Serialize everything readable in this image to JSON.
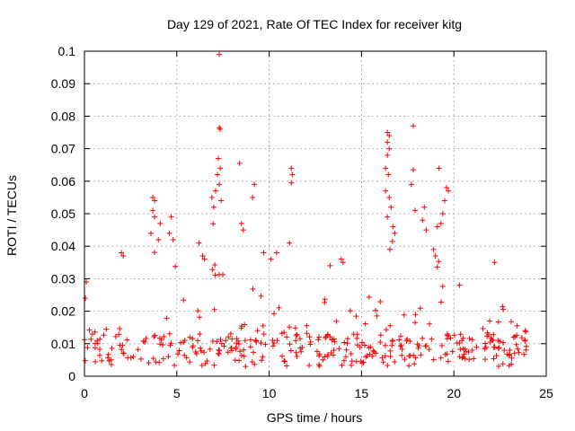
{
  "chart_data": {
    "type": "scatter",
    "title": "Day 129 of 2021, Rate Of TEC Index for receiver kitg",
    "xlabel": "GPS time / hours",
    "ylabel": "ROTI / TECUs",
    "xlim": [
      0,
      25
    ],
    "ylim": [
      0,
      0.1
    ],
    "xticks": [
      "0",
      "5",
      "10",
      "15",
      "20",
      "25"
    ],
    "yticks": [
      "0",
      "0.01",
      "0.02",
      "0.03",
      "0.04",
      "0.05",
      "0.06",
      "0.07",
      "0.08",
      "0.09",
      "0.1"
    ],
    "grid": true,
    "marker": "+",
    "color": "#ff0000",
    "envelope": [
      [
        0.0,
        0.014
      ],
      [
        0.5,
        0.016
      ],
      [
        1.0,
        0.02
      ],
      [
        1.5,
        0.022
      ],
      [
        2.0,
        0.026
      ],
      [
        2.5,
        0.022
      ],
      [
        3.0,
        0.024
      ],
      [
        3.5,
        0.028
      ],
      [
        3.8,
        0.044
      ],
      [
        4.2,
        0.03
      ],
      [
        4.8,
        0.038
      ],
      [
        5.2,
        0.028
      ],
      [
        5.8,
        0.024
      ],
      [
        6.3,
        0.03
      ],
      [
        6.7,
        0.046
      ],
      [
        7.0,
        0.05
      ],
      [
        7.3,
        0.064
      ],
      [
        7.6,
        0.048
      ],
      [
        8.0,
        0.026
      ],
      [
        8.5,
        0.026
      ],
      [
        9.0,
        0.03
      ],
      [
        9.5,
        0.026
      ],
      [
        10.0,
        0.032
      ],
      [
        10.5,
        0.028
      ],
      [
        11.0,
        0.026
      ],
      [
        11.5,
        0.024
      ],
      [
        12.0,
        0.024
      ],
      [
        12.5,
        0.022
      ],
      [
        13.0,
        0.026
      ],
      [
        13.5,
        0.026
      ],
      [
        14.0,
        0.028
      ],
      [
        14.5,
        0.026
      ],
      [
        15.0,
        0.026
      ],
      [
        15.5,
        0.028
      ],
      [
        16.0,
        0.03
      ],
      [
        16.3,
        0.05
      ],
      [
        16.6,
        0.062
      ],
      [
        16.9,
        0.04
      ],
      [
        17.3,
        0.03
      ],
      [
        17.8,
        0.034
      ],
      [
        18.2,
        0.036
      ],
      [
        18.6,
        0.04
      ],
      [
        19.0,
        0.044
      ],
      [
        19.4,
        0.034
      ],
      [
        19.7,
        0.022
      ],
      [
        20.0,
        0.014
      ],
      [
        20.5,
        0.012
      ],
      [
        21.0,
        0.016
      ],
      [
        21.5,
        0.02
      ],
      [
        22.0,
        0.024
      ],
      [
        22.5,
        0.022
      ],
      [
        23.0,
        0.024
      ],
      [
        23.5,
        0.022
      ],
      [
        24.0,
        0.018
      ]
    ],
    "outliers": [
      {
        "x": 7.3,
        "y": 0.099
      },
      {
        "x": 7.3,
        "y": 0.0765
      },
      {
        "x": 7.35,
        "y": 0.076
      },
      {
        "x": 7.25,
        "y": 0.067
      },
      {
        "x": 7.35,
        "y": 0.064
      },
      {
        "x": 7.2,
        "y": 0.062
      },
      {
        "x": 7.3,
        "y": 0.059
      },
      {
        "x": 7.1,
        "y": 0.057
      },
      {
        "x": 6.9,
        "y": 0.055
      },
      {
        "x": 7.4,
        "y": 0.054
      },
      {
        "x": 7.0,
        "y": 0.052
      },
      {
        "x": 8.4,
        "y": 0.0655
      },
      {
        "x": 9.2,
        "y": 0.059
      },
      {
        "x": 9.1,
        "y": 0.055
      },
      {
        "x": 8.5,
        "y": 0.047
      },
      {
        "x": 8.6,
        "y": 0.045
      },
      {
        "x": 9.7,
        "y": 0.038
      },
      {
        "x": 10.4,
        "y": 0.038
      },
      {
        "x": 11.2,
        "y": 0.064
      },
      {
        "x": 11.25,
        "y": 0.062
      },
      {
        "x": 11.2,
        "y": 0.0595
      },
      {
        "x": 11.1,
        "y": 0.041
      },
      {
        "x": 10.1,
        "y": 0.036
      },
      {
        "x": 3.7,
        "y": 0.055
      },
      {
        "x": 3.8,
        "y": 0.054
      },
      {
        "x": 3.7,
        "y": 0.051
      },
      {
        "x": 3.8,
        "y": 0.049
      },
      {
        "x": 4.1,
        "y": 0.047
      },
      {
        "x": 3.6,
        "y": 0.044
      },
      {
        "x": 4.0,
        "y": 0.042
      },
      {
        "x": 4.7,
        "y": 0.049
      },
      {
        "x": 4.6,
        "y": 0.044
      },
      {
        "x": 4.8,
        "y": 0.042
      },
      {
        "x": 2.0,
        "y": 0.038
      },
      {
        "x": 2.1,
        "y": 0.037
      },
      {
        "x": 16.4,
        "y": 0.075
      },
      {
        "x": 16.5,
        "y": 0.074
      },
      {
        "x": 16.4,
        "y": 0.072
      },
      {
        "x": 16.5,
        "y": 0.07
      },
      {
        "x": 16.4,
        "y": 0.068
      },
      {
        "x": 16.3,
        "y": 0.064
      },
      {
        "x": 16.45,
        "y": 0.062
      },
      {
        "x": 16.3,
        "y": 0.057
      },
      {
        "x": 16.5,
        "y": 0.055
      },
      {
        "x": 16.6,
        "y": 0.052
      },
      {
        "x": 16.4,
        "y": 0.049
      },
      {
        "x": 16.7,
        "y": 0.046
      },
      {
        "x": 16.8,
        "y": 0.044
      },
      {
        "x": 17.8,
        "y": 0.077
      },
      {
        "x": 17.8,
        "y": 0.0635
      },
      {
        "x": 17.7,
        "y": 0.059
      },
      {
        "x": 17.9,
        "y": 0.051
      },
      {
        "x": 18.4,
        "y": 0.052
      },
      {
        "x": 18.3,
        "y": 0.048
      },
      {
        "x": 18.5,
        "y": 0.045
      },
      {
        "x": 19.2,
        "y": 0.064
      },
      {
        "x": 19.6,
        "y": 0.058
      },
      {
        "x": 19.7,
        "y": 0.057
      },
      {
        "x": 19.5,
        "y": 0.054
      },
      {
        "x": 19.4,
        "y": 0.05
      },
      {
        "x": 19.3,
        "y": 0.047
      },
      {
        "x": 19.1,
        "y": 0.046
      },
      {
        "x": 13.3,
        "y": 0.034
      },
      {
        "x": 13.9,
        "y": 0.036
      },
      {
        "x": 14.0,
        "y": 0.035
      },
      {
        "x": 22.2,
        "y": 0.035
      },
      {
        "x": 20.3,
        "y": 0.028
      },
      {
        "x": 0.1,
        "y": 0.029
      },
      {
        "x": 0.05,
        "y": 0.024
      },
      {
        "x": 6.5,
        "y": 0.036
      },
      {
        "x": 6.4,
        "y": 0.037
      },
      {
        "x": 6.2,
        "y": 0.041
      },
      {
        "x": 18.9,
        "y": 0.039
      },
      {
        "x": 19.0,
        "y": 0.037
      }
    ]
  }
}
